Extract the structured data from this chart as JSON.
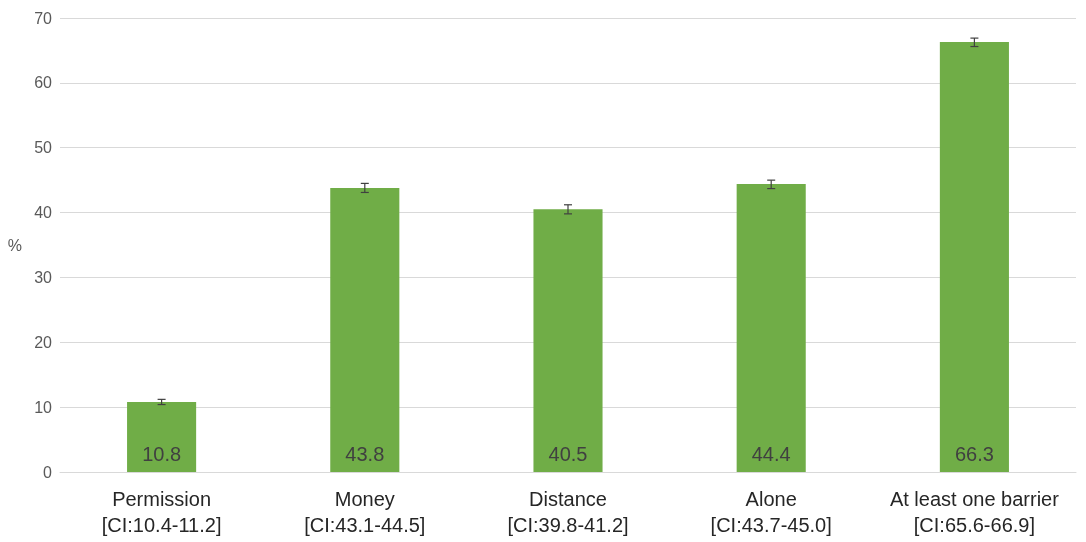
{
  "chart_data": {
    "type": "bar",
    "ylabel": "%",
    "categories": [
      "Permission\n[CI:10.4-11.2]",
      "Money\n[CI:43.1-44.5]",
      "Distance\n[CI:39.8-41.2]",
      "Alone\n[CI:43.7-45.0]",
      "At least one barrier\n[CI:65.6-66.9]"
    ],
    "values": [
      10.8,
      43.8,
      40.5,
      44.4,
      66.3
    ],
    "errors": [
      [
        10.4,
        11.2
      ],
      [
        43.1,
        44.5
      ],
      [
        39.8,
        41.2
      ],
      [
        43.7,
        45.0
      ],
      [
        65.6,
        66.9
      ]
    ],
    "color": "#70ad47",
    "ylim": [
      0,
      70
    ],
    "yticks": [
      0,
      10,
      20,
      30,
      40,
      50,
      60,
      70
    ],
    "grid": "y",
    "data_labels": true
  }
}
